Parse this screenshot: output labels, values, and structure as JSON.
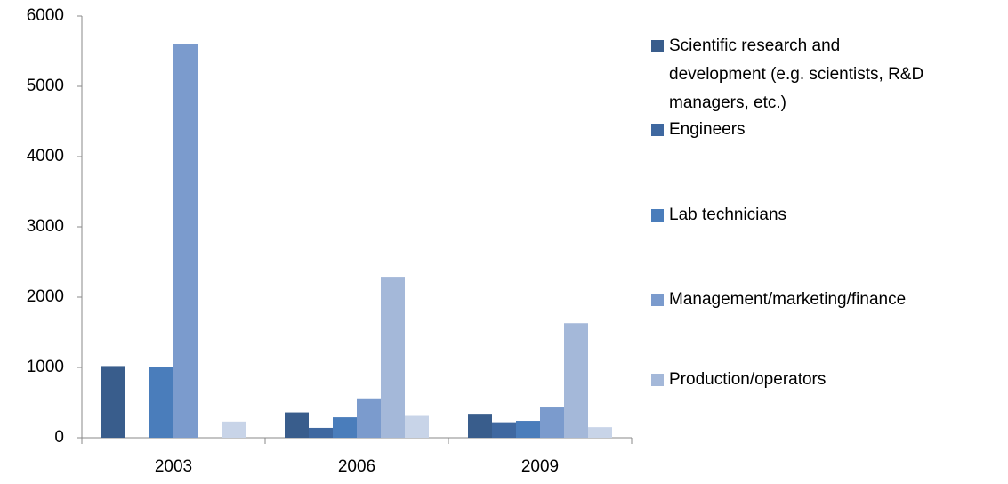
{
  "chart_data": {
    "type": "bar",
    "categories": [
      "2003",
      "2006",
      "2009"
    ],
    "series": [
      {
        "name": "Scientific research and development (e.g. scientists, R&D managers, etc.)",
        "color": "#395d8c",
        "values": [
          1020,
          360,
          340
        ]
      },
      {
        "name": "Engineers",
        "color": "#3f68a0",
        "values": [
          0,
          140,
          220
        ]
      },
      {
        "name": "Lab technicians",
        "color": "#4a7dbb",
        "values": [
          1010,
          290,
          240
        ]
      },
      {
        "name": "Management/marketing/finance",
        "color": "#7b9bcd",
        "values": [
          5600,
          560,
          430
        ]
      },
      {
        "name": "Production/operators",
        "color": "#a4b8d9",
        "values": [
          0,
          2290,
          1630
        ]
      },
      {
        "color": "#c8d4e8",
        "values": [
          230,
          310,
          150
        ]
      }
    ],
    "ylim": [
      0,
      6000
    ],
    "yticks": [
      0,
      1000,
      2000,
      3000,
      4000,
      5000,
      6000
    ]
  }
}
